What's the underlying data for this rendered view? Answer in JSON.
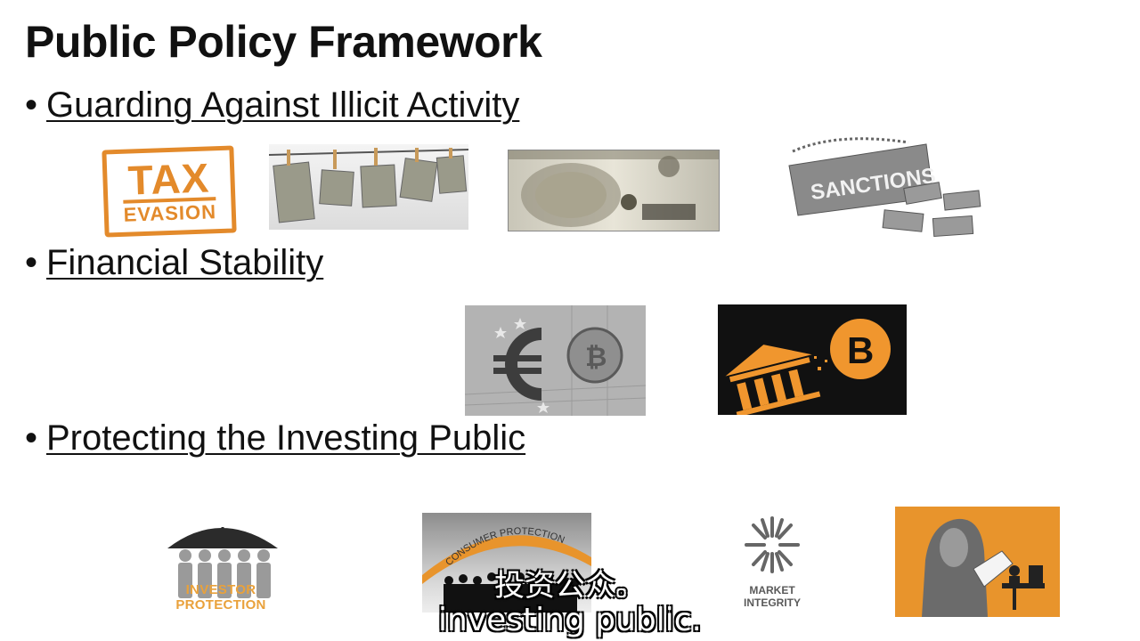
{
  "slide": {
    "title": "Public Policy Framework",
    "bullet_char": "•",
    "bullets": [
      {
        "text": "Guarding Against Illicit Activity"
      },
      {
        "text": "Financial Stability"
      },
      {
        "text": "Protecting the Investing Public"
      }
    ]
  },
  "images": {
    "tax_stamp": {
      "line1": "TAX",
      "line2": "EVASION"
    },
    "sanctions": {
      "label": "SANCTIONS"
    },
    "investor_protection": {
      "caption": "INVESTOR PROTECTION"
    },
    "consumer_protection": {
      "arc_label": "CONSUMER PROTECTION"
    },
    "market_integrity": {
      "line1": "MARKET",
      "line2": "INTEGRITY"
    }
  },
  "subtitles": {
    "chinese": "投资公众。",
    "english": "investing public."
  },
  "colors": {
    "accent_orange": "#e38a2b",
    "text": "#111111"
  }
}
